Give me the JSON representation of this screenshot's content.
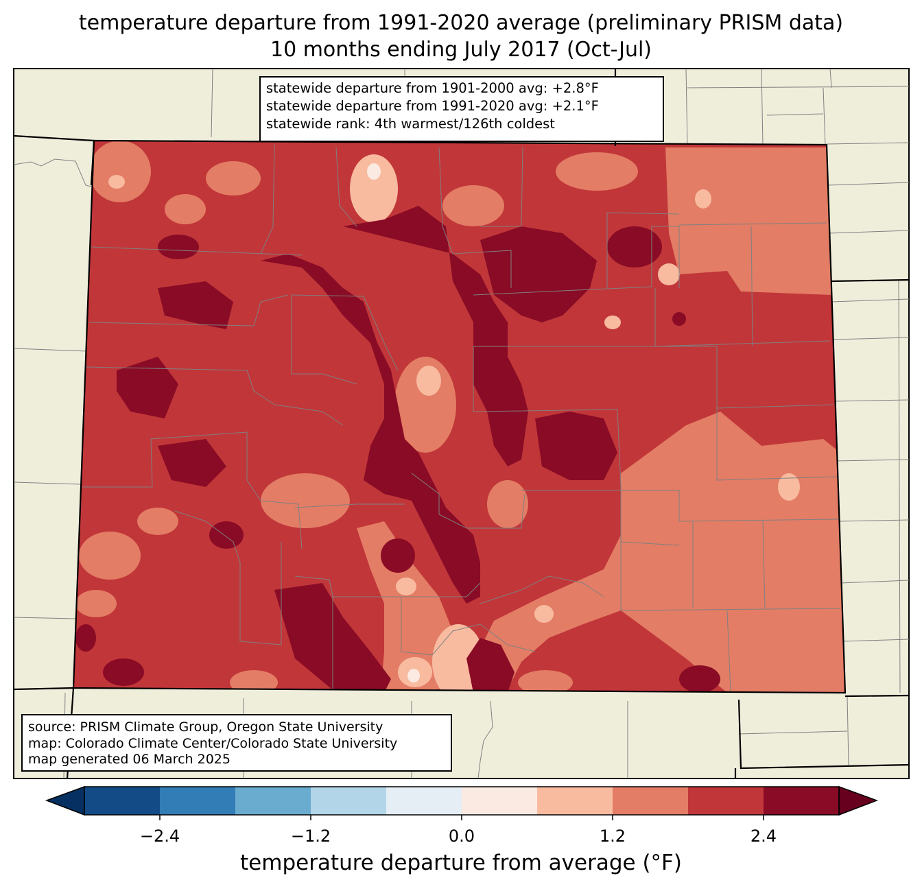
{
  "title_line1": "temperature departure from 1991-2020 average (preliminary PRISM data)",
  "title_line2": "10 months ending July 2017 (Oct-Jul)",
  "stats": {
    "line1": "statewide departure from 1901-2000 avg: +2.8°F",
    "line2": "statewide departure from 1991-2020 avg: +2.1°F",
    "line3": "statewide rank: 4th warmest/126th coldest"
  },
  "source": {
    "line1": "source: PRISM Climate Group, Oregon State University",
    "line2": "map: Colorado Climate Center/Colorado State University",
    "line3": "map generated 06 March 2025"
  },
  "colorbar": {
    "label": "temperature departure from average (°F)",
    "ticks": [
      "−2.4",
      "−1.2",
      "0.0",
      "1.2",
      "2.4"
    ],
    "bins": [
      -3.0,
      -2.4,
      -1.8,
      -1.2,
      -0.6,
      0.0,
      0.6,
      1.2,
      1.8,
      2.4,
      3.0
    ],
    "colors": [
      "#053061",
      "#134b87",
      "#327db6",
      "#6aacd0",
      "#b2d5e7",
      "#e4eef4",
      "#faeae1",
      "#f8bba0",
      "#e37d65",
      "#c13639",
      "#8a0b25",
      "#67001f"
    ]
  },
  "colors": {
    "land_background": "#efeedb",
    "county_lines": "#808080",
    "state_border": "#000000"
  }
}
